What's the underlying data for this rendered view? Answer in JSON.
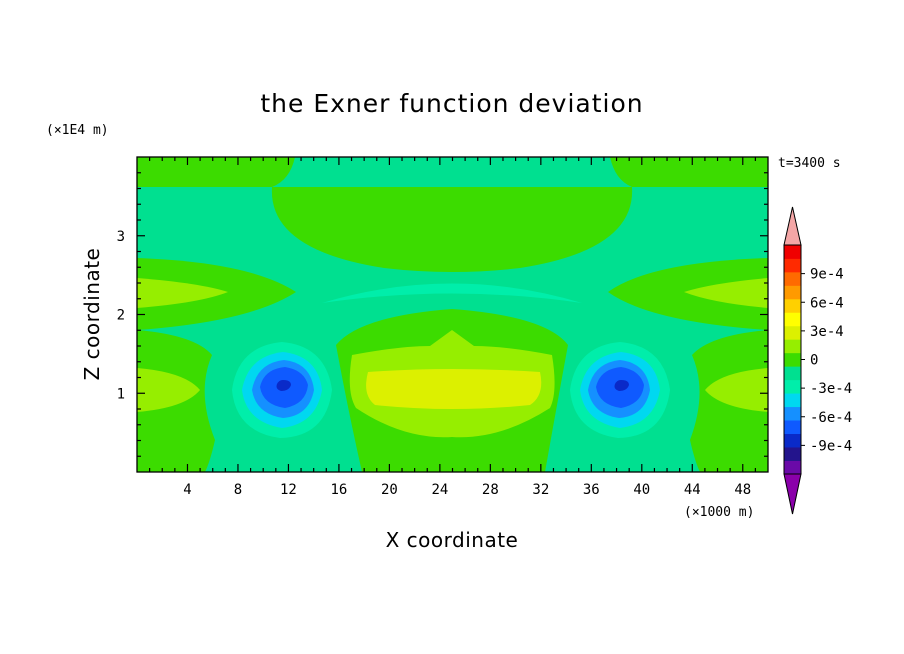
{
  "chart_data": {
    "type": "heatmap",
    "title": "the Exner function deviation",
    "xlabel": "X coordinate",
    "ylabel": "Z coordinate",
    "x_unit": "(×1000 m)",
    "y_unit": "(×1E4 m)",
    "time_label": "t=3400 s",
    "xlim": [
      0,
      50
    ],
    "ylim": [
      0,
      4
    ],
    "x_ticks": [
      4,
      8,
      12,
      16,
      20,
      24,
      28,
      32,
      36,
      40,
      44,
      48
    ],
    "y_ticks": [
      1,
      2,
      3
    ],
    "colorbar": {
      "ticks": [
        "9e-4",
        "6e-4",
        "3e-4",
        "0",
        "-3e-4",
        "-6e-4",
        "-9e-4"
      ],
      "tick_values": [
        0.0009,
        0.0006,
        0.0003,
        0,
        -0.0003,
        -0.0006,
        -0.0009
      ],
      "levels": [
        -0.0012,
        -0.0009,
        -0.0006,
        -0.0003,
        0,
        0.0003,
        0.0006,
        0.0009,
        0.0012
      ],
      "colors_low_to_high": [
        "#6a0aa8",
        "#23148c",
        "#0a2ac8",
        "#0f5aff",
        "#1590ff",
        "#00d8f0",
        "#00eeaa",
        "#00e090",
        "#3cdc00",
        "#96ee00",
        "#dcf000",
        "#ffff00",
        "#ffd000",
        "#ff9a00",
        "#ff6a00",
        "#ff2a00",
        "#f00000"
      ],
      "under_color": "#8a00aa",
      "over_color": "#f4a6a6"
    },
    "field_regions": [
      {
        "name": "background",
        "color": "#00e090"
      },
      {
        "name": "upper-center-positive",
        "x_range": [
          14,
          38
        ],
        "z_range": [
          2.55,
          3.55
        ],
        "color": "#3cdc00"
      },
      {
        "name": "top-corner-left",
        "x_range": [
          0,
          12
        ],
        "z_range": [
          3.6,
          4.0
        ],
        "color": "#3cdc00"
      },
      {
        "name": "top-corner-right",
        "x_range": [
          38,
          50
        ],
        "z_range": [
          3.6,
          4.0
        ],
        "color": "#3cdc00"
      },
      {
        "name": "side-lobes-mid",
        "z_range": [
          1.9,
          2.7
        ],
        "color": "#96ee00"
      },
      {
        "name": "side-lobes-low",
        "z_range": [
          0.8,
          1.35
        ],
        "color": "#96ee00"
      },
      {
        "name": "center-core",
        "x_range": [
          18,
          33
        ],
        "z_range": [
          0.8,
          1.3
        ],
        "color": "#dcf000"
      },
      {
        "name": "thin-negative-arc",
        "x_range": [
          15,
          35
        ],
        "z_range": [
          2.1,
          2.35
        ],
        "color": "#00eeaa"
      },
      {
        "name": "left-vortex-min",
        "x": 12,
        "z": 1.1,
        "value": -0.0007
      },
      {
        "name": "right-vortex-min",
        "x": 38,
        "z": 1.1,
        "value": -0.0007
      }
    ]
  }
}
